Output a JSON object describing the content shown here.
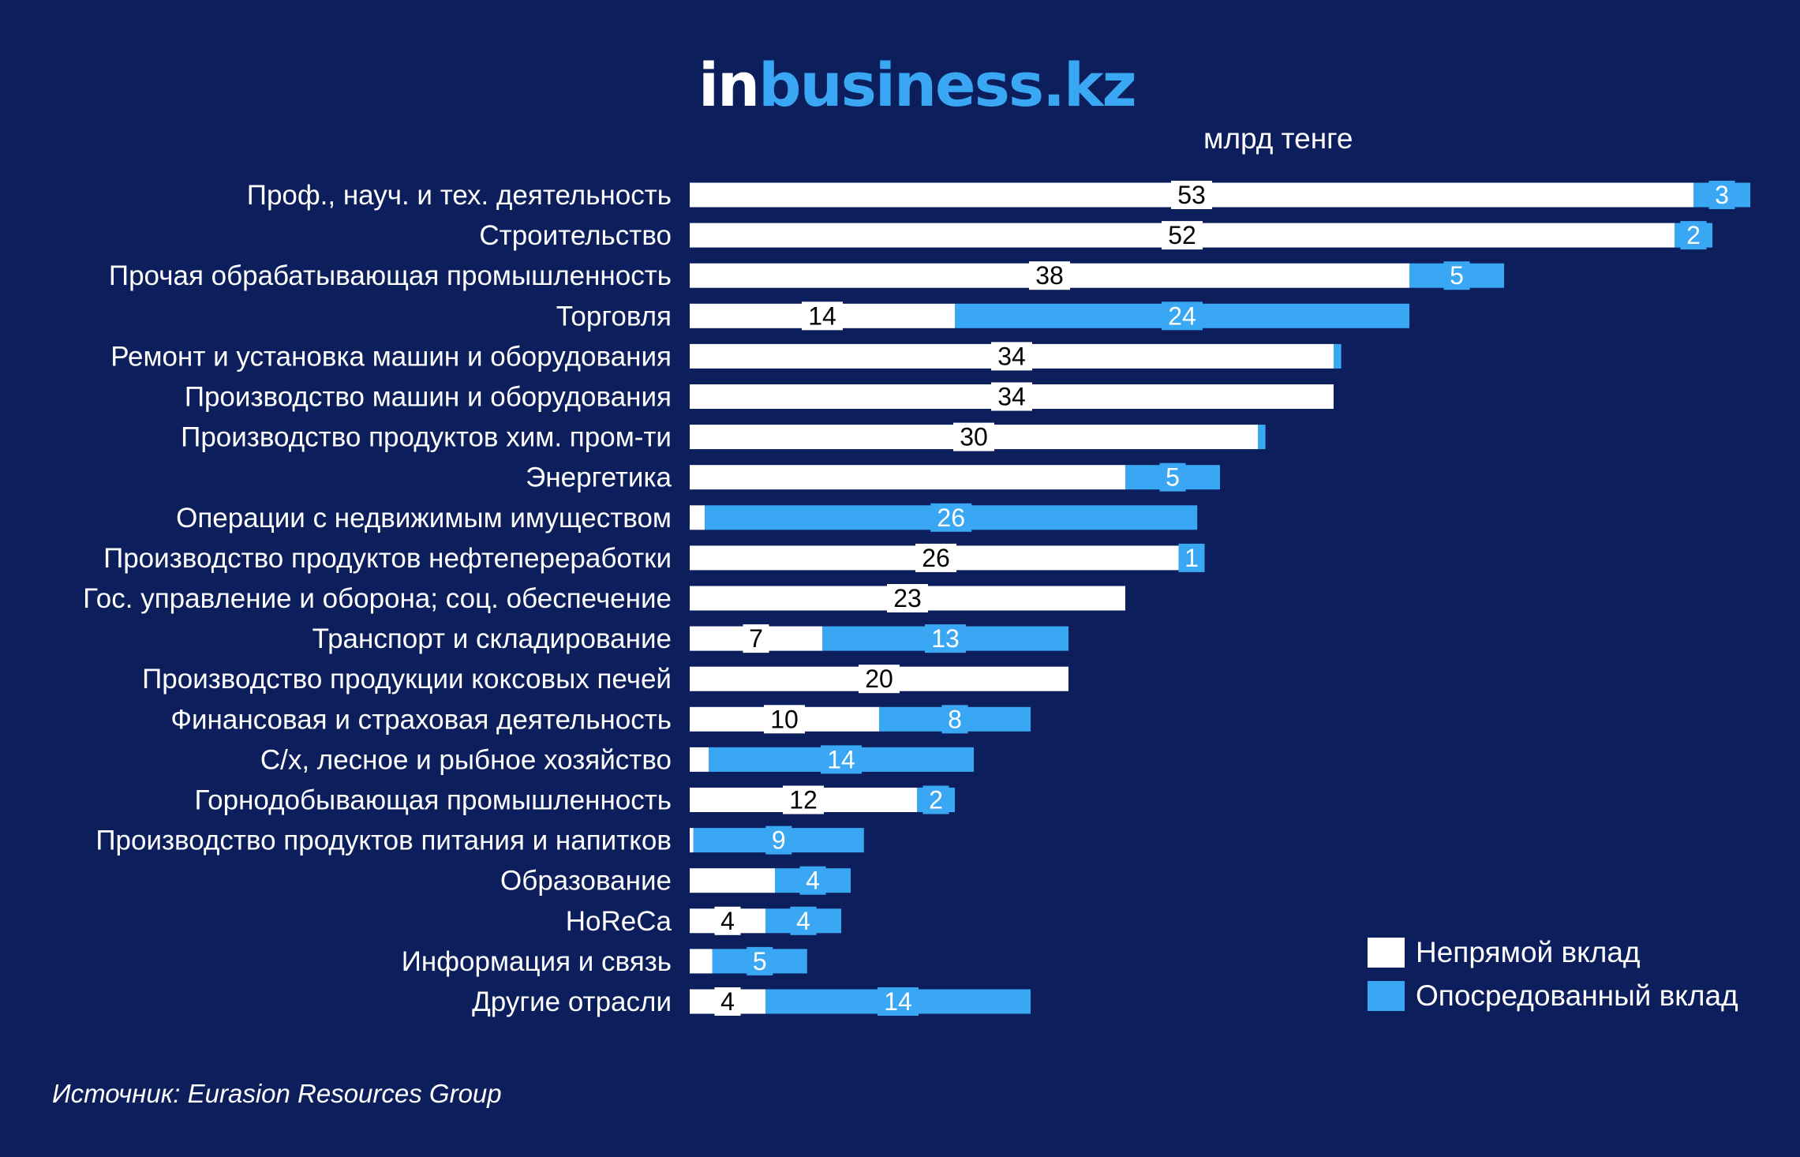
{
  "header": {
    "logo_part1": "in",
    "logo_part2": "business.kz",
    "unit": "млрд тенге"
  },
  "source": "Источник: Eurasion Resources Group",
  "colors": {
    "background": "#0c1f5c",
    "indirect": "#ffffff",
    "mediated": "#3aa7f5"
  },
  "legend": {
    "placement": "bottom-right",
    "items": [
      {
        "label": "Непрямой вклад",
        "color": "#ffffff"
      },
      {
        "label": "Опосредованный вклад",
        "color": "#3aa7f5"
      }
    ]
  },
  "chart_data": {
    "type": "bar",
    "orientation": "horizontal",
    "stacked": true,
    "categories": [
      "Проф., науч. и тех. деятельность",
      "Строительство",
      "Прочая обрабатывающая промышленность",
      "Торговля",
      "Ремонт и установка машин и оборудования",
      "Производство машин и оборудования",
      "Производство продуктов хим. пром-ти",
      "Энергетика",
      "Операции с недвижимым имуществом",
      "Производство продуктов нефтепереработки",
      "Гос. управление и оборона; соц. обеспечение",
      "Транспорт и складирование",
      "Производство продукции коксовых печей",
      "Финансовая и страховая деятельность",
      "С/х, лесное и рыбное хозяйство",
      "Горнодобывающая промышленность",
      "Производство продуктов питания и напитков",
      "Образование",
      "HoReCa",
      "Информация и связь",
      "Другие отрасли"
    ],
    "series": [
      {
        "name": "Непрямой вклад",
        "values": [
          53,
          52,
          38,
          14,
          34,
          34,
          30,
          23,
          0.8,
          26,
          23,
          7,
          20,
          10,
          1,
          12,
          0.2,
          4.5,
          4,
          1.2,
          4
        ],
        "labels": [
          "53",
          "52",
          "38",
          "14",
          "34",
          "34",
          "30",
          "",
          "",
          "26",
          "23",
          "7",
          "20",
          "10",
          "",
          "12",
          "",
          "",
          "4",
          "",
          "4"
        ]
      },
      {
        "name": "Опосредованный вклад",
        "values": [
          3,
          2,
          5,
          24,
          0.4,
          0,
          0.4,
          5,
          26,
          1,
          0,
          13,
          0,
          8,
          14,
          2,
          9,
          4,
          4,
          5,
          14
        ],
        "labels": [
          "3",
          "2",
          "5",
          "24",
          "",
          "",
          "",
          "5",
          "26",
          "1",
          "",
          "13",
          "",
          "8",
          "14",
          "2",
          "9",
          "4",
          "4",
          "5",
          "14"
        ]
      }
    ],
    "xlim": [
      0,
      56
    ],
    "grid": false
  }
}
